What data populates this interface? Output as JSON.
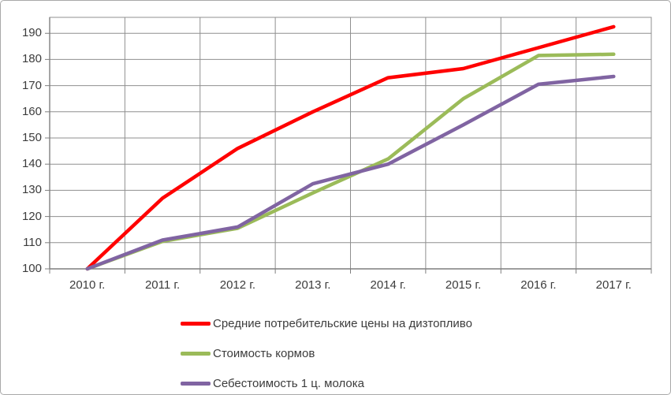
{
  "chart_data": {
    "type": "line",
    "title": "",
    "xlabel": "",
    "ylabel": "",
    "categories": [
      "2010 г.",
      "2011 г.",
      "2012 г.",
      "2013 г.",
      "2014 г.",
      "2015 г.",
      "2016 г.",
      "2017 г."
    ],
    "series": [
      {
        "name": "Средние потребительские цены на дизтопливо",
        "color": "#ff0000",
        "values": [
          100,
          127,
          146,
          160,
          173,
          176.5,
          184.5,
          192.5
        ]
      },
      {
        "name": "Стоимость кормов",
        "color": "#9bbb59",
        "values": [
          100,
          110.5,
          115.5,
          129,
          142,
          165,
          181.5,
          182
        ]
      },
      {
        "name": "Себестоимость 1 ц. молока",
        "color": "#8064a2",
        "values": [
          100,
          111,
          116,
          132.5,
          140,
          155,
          170.5,
          173.5
        ]
      }
    ],
    "y_ticks": [
      100,
      110,
      120,
      130,
      140,
      150,
      160,
      170,
      180,
      190
    ],
    "ylim": [
      100,
      197
    ],
    "grid": true,
    "legend_position": "bottom",
    "gridline_color": "#8f8f8f",
    "axis_color": "#7f7f7f"
  }
}
